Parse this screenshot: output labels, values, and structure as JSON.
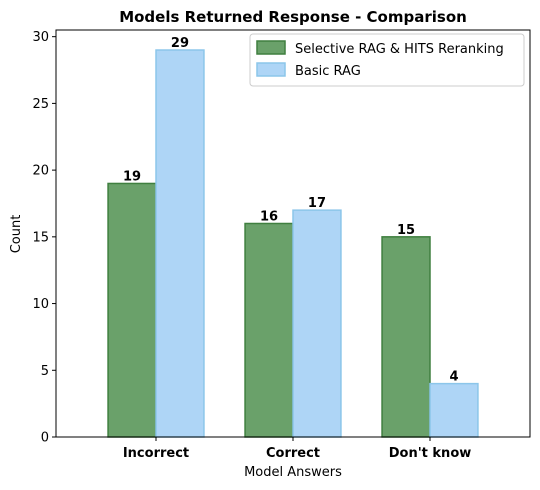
{
  "chart_data": {
    "type": "bar",
    "title": "Models Returned Response - Comparison",
    "xlabel": "Model Answers",
    "ylabel": "Count",
    "categories": [
      "Incorrect",
      "Correct",
      "Don't know"
    ],
    "ylim": [
      0,
      30.5
    ],
    "yticks": [
      0,
      5,
      10,
      15,
      20,
      25,
      30
    ],
    "legend_position": "top-right",
    "grid": false,
    "series": [
      {
        "name": "Selective RAG & HITS Reranking",
        "values": [
          19,
          16,
          15
        ],
        "fill": "#6aa16a",
        "stroke": "#3f7f3f"
      },
      {
        "name": "Basic RAG",
        "values": [
          29,
          17,
          4
        ],
        "fill": "#aed5f6",
        "stroke": "#8cc6ea"
      }
    ]
  }
}
